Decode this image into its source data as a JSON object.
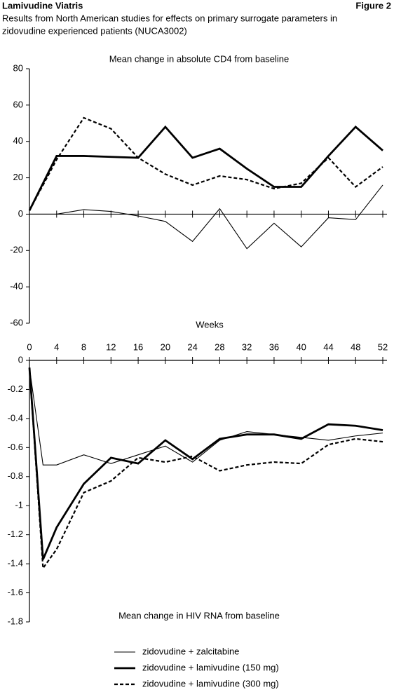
{
  "header": {
    "left": "Lamivudine Viatris",
    "right": "Figure 2",
    "description": [
      "Results from North American studies for effects on primary surrogate parameters in",
      "zidovudine experienced patients (NUCA3002)"
    ]
  },
  "chart_data": [
    {
      "type": "line",
      "title": "Mean change in absolute CD4 from baseline",
      "x": [
        0,
        4,
        8,
        12,
        16,
        20,
        24,
        28,
        32,
        36,
        40,
        44,
        48,
        52
      ],
      "xlim": [
        0,
        52
      ],
      "xticks": [
        0,
        4,
        8,
        12,
        16,
        20,
        24,
        28,
        32,
        36,
        40,
        44,
        48,
        52
      ],
      "ylim": [
        -60,
        80
      ],
      "yticks": [
        80,
        60,
        40,
        20,
        0,
        -20,
        -40,
        -60
      ],
      "series": [
        {
          "color": "#000000",
          "style": "thin",
          "values": [
            0,
            0,
            2.5,
            1.5,
            -1,
            -4,
            -15,
            3,
            -19,
            -5,
            -18,
            -2,
            -3,
            16
          ]
        },
        {
          "color": "#000000",
          "style": "thick",
          "values": [
            2,
            32,
            32,
            31.5,
            31,
            48,
            31,
            36,
            25,
            15,
            15,
            32,
            48,
            35
          ]
        },
        {
          "color": "#000000",
          "style": "dashed",
          "values": [
            2,
            30,
            53,
            47,
            31,
            22,
            16,
            21,
            19,
            14,
            17,
            31,
            15,
            26
          ]
        }
      ]
    },
    {
      "type": "line",
      "title": "Mean change in HIV RNA from baseline",
      "xlabel": "Weeks",
      "x": [
        0,
        2,
        4,
        8,
        12,
        16,
        20,
        24,
        28,
        32,
        36,
        40,
        44,
        48,
        52
      ],
      "xlim": [
        0,
        52
      ],
      "xticks": [
        0,
        4,
        8,
        12,
        16,
        20,
        24,
        28,
        32,
        36,
        40,
        44,
        48,
        52
      ],
      "ylim": [
        -1.8,
        0
      ],
      "yticks": [
        0,
        -0.2,
        -0.4,
        -0.6,
        -0.8,
        -1,
        -1.2,
        -1.4,
        -1.6,
        -1.8
      ],
      "series": [
        {
          "name": "zidovudine + zalcitabine",
          "color": "#000000",
          "style": "thin",
          "values": [
            -0.05,
            -0.72,
            -0.72,
            -0.65,
            -0.71,
            -0.65,
            -0.59,
            -0.7,
            -0.55,
            -0.49,
            -0.51,
            -0.53,
            -0.55,
            -0.52,
            -0.5
          ]
        },
        {
          "name": "zidovudine + lamivudine (150 mg)",
          "color": "#000000",
          "style": "thick",
          "values": [
            -0.05,
            -1.37,
            -1.15,
            -0.85,
            -0.67,
            -0.71,
            -0.55,
            -0.68,
            -0.54,
            -0.51,
            -0.51,
            -0.54,
            -0.44,
            -0.45,
            -0.48
          ]
        },
        {
          "name": "zidovudine + lamivudine (300 mg)",
          "color": "#000000",
          "style": "dashed",
          "values": [
            -0.05,
            -1.43,
            -1.3,
            -0.91,
            -0.83,
            -0.67,
            -0.7,
            -0.66,
            -0.76,
            -0.72,
            -0.7,
            -0.71,
            -0.58,
            -0.54,
            -0.56
          ]
        }
      ]
    }
  ]
}
